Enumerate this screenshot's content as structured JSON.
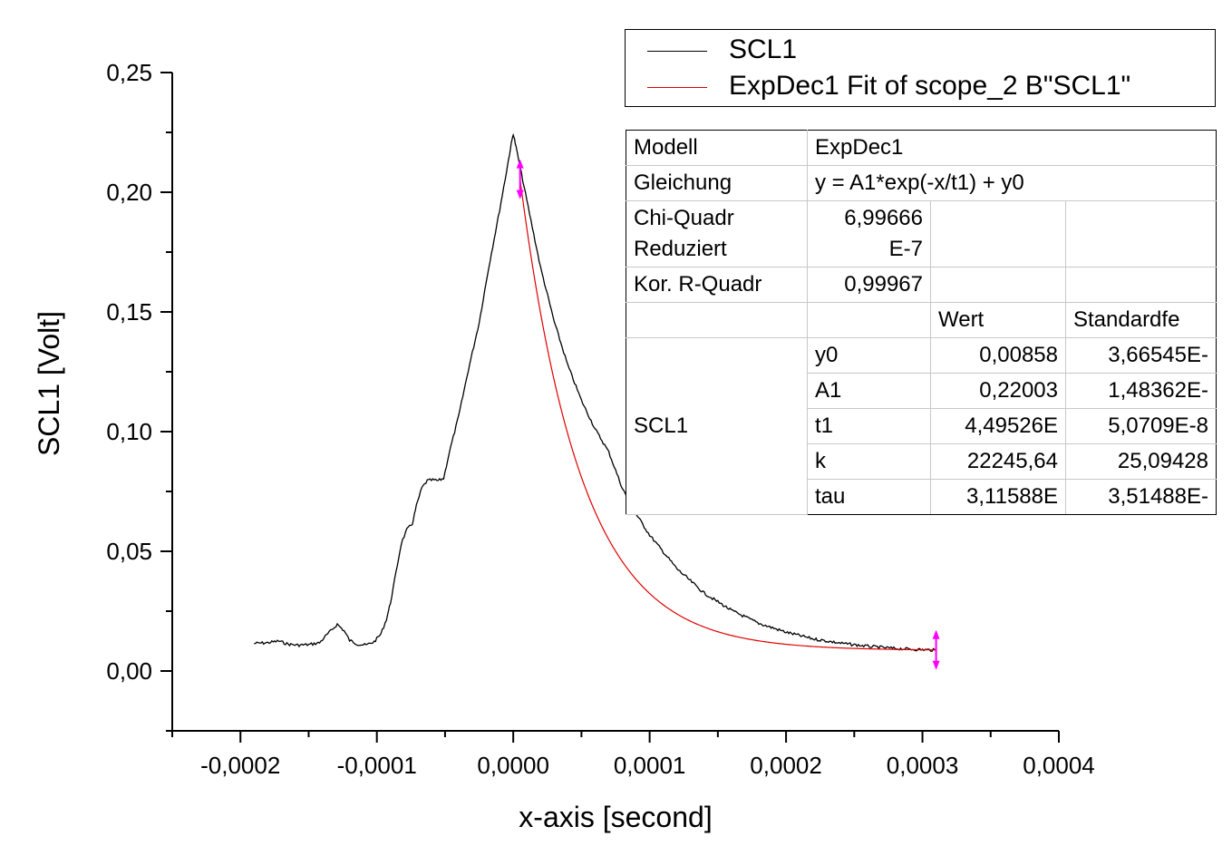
{
  "chart_data": {
    "type": "line",
    "xlabel": "x-axis [second]",
    "ylabel": "SCL1 [Volt]",
    "xlim": [
      -0.00025,
      0.0004
    ],
    "ylim": [
      -0.025,
      0.25
    ],
    "x_ticks": [
      -0.0002,
      -0.0001,
      0.0,
      0.0001,
      0.0002,
      0.0003,
      0.0004
    ],
    "x_tick_labels": [
      "-0,0002",
      "-0,0001",
      "0,0000",
      "0,0001",
      "0,0002",
      "0,0003",
      "0,0004"
    ],
    "y_ticks": [
      0.0,
      0.05,
      0.1,
      0.15,
      0.2,
      0.25
    ],
    "y_tick_labels": [
      "0,00",
      "0,05",
      "0,10",
      "0,15",
      "0,20",
      "0,25"
    ],
    "grid": false,
    "legend_position": "top-right",
    "series": [
      {
        "name": "SCL1",
        "color": "#000000",
        "points": [
          [
            -0.00019,
            0.0115
          ],
          [
            -0.00018,
            0.0118
          ],
          [
            -0.000172,
            0.0125
          ],
          [
            -0.000165,
            0.0112
          ],
          [
            -0.000158,
            0.0108
          ],
          [
            -0.00015,
            0.011
          ],
          [
            -0.000142,
            0.0118
          ],
          [
            -0.000136,
            0.0155
          ],
          [
            -0.000129,
            0.0195
          ],
          [
            -0.000124,
            0.0168
          ],
          [
            -0.00012,
            0.0128
          ],
          [
            -0.000114,
            0.0112
          ],
          [
            -0.000108,
            0.0108
          ],
          [
            -0.000102,
            0.0122
          ],
          [
            -9.7e-05,
            0.0155
          ],
          [
            -9.3e-05,
            0.0215
          ],
          [
            -9e-05,
            0.0285
          ],
          [
            -8.6e-05,
            0.041
          ],
          [
            -8.2e-05,
            0.0535
          ],
          [
            -7.8e-05,
            0.059
          ],
          [
            -7.4e-05,
            0.0615
          ],
          [
            -7.1e-05,
            0.069
          ],
          [
            -6.7e-05,
            0.0765
          ],
          [
            -6.3e-05,
            0.0795
          ],
          [
            -5.9e-05,
            0.0798
          ],
          [
            -5.5e-05,
            0.0795
          ],
          [
            -5.1e-05,
            0.0805
          ],
          [
            -4.7e-05,
            0.091
          ],
          [
            -4e-05,
            0.1065
          ],
          [
            -3.3e-05,
            0.1255
          ],
          [
            -2.5e-05,
            0.1455
          ],
          [
            -1.8e-05,
            0.1685
          ],
          [
            -1e-05,
            0.1925
          ],
          [
            -5e-06,
            0.2085
          ],
          [
            -2e-06,
            0.2185
          ],
          [
            0.0,
            0.2245
          ],
          [
            2e-06,
            0.219
          ],
          [
            1e-05,
            0.1965
          ],
          [
            2e-05,
            0.1686
          ],
          [
            3e-05,
            0.146
          ],
          [
            4e-05,
            0.1277
          ],
          [
            5e-05,
            0.113
          ],
          [
            6e-05,
            0.1011
          ],
          [
            7e-05,
            0.0915
          ],
          [
            8e-05,
            0.0763
          ],
          [
            9e-05,
            0.0656
          ],
          [
            0.0001,
            0.0568
          ],
          [
            0.00012,
            0.0427
          ],
          [
            0.00014,
            0.0325
          ],
          [
            0.00016,
            0.0253
          ],
          [
            0.00018,
            0.0199
          ],
          [
            0.0002,
            0.0162
          ],
          [
            0.00022,
            0.0134
          ],
          [
            0.00024,
            0.0116
          ],
          [
            0.00026,
            0.0103
          ],
          [
            0.00028,
            0.0094
          ],
          [
            0.0003,
            0.0089
          ],
          [
            0.00031,
            0.0087
          ]
        ]
      },
      {
        "name": "ExpDec1 Fit of scope_2 B\"SCL1\"",
        "color": "#e00000",
        "model": "y = A1*exp(-x/t1) + y0",
        "params": {
          "y0": 0.00858,
          "A1": 0.22003,
          "t1": 4.49526e-05
        },
        "x_range": [
          5e-06,
          0.00031
        ]
      }
    ],
    "fit_range_markers": {
      "x": [
        5e-06,
        0.00031
      ],
      "color": "#ff00ff"
    }
  },
  "legend": {
    "entries": [
      {
        "label": "SCL1",
        "color": "#000000"
      },
      {
        "label": "ExpDec1 Fit of scope_2 B\"SCL1\"",
        "color": "#e00000"
      }
    ]
  },
  "fit_table": {
    "model_label": "Modell",
    "model_value": "ExpDec1",
    "equation_label": "Gleichung",
    "equation_value": "y = A1*exp(-x/t1) + y0",
    "chi_label_1": "Chi-Quadr",
    "chi_label_2": "Reduziert",
    "chi_value_1": "6,99666",
    "chi_value_2": "E-7",
    "r2_label": "Kor. R-Quadr",
    "r2_value": "0,99967",
    "col_value": "Wert",
    "col_error": "Standardfe",
    "group_label": "SCL1",
    "rows": [
      {
        "param": "y0",
        "value": "0,00858",
        "error": "3,66545E-"
      },
      {
        "param": "A1",
        "value": "0,22003",
        "error": "1,48362E-"
      },
      {
        "param": "t1",
        "value": "4,49526E",
        "error": "5,0709E-8"
      },
      {
        "param": "k",
        "value": "22245,64",
        "error": "25,09428"
      },
      {
        "param": "tau",
        "value": "3,11588E",
        "error": "3,51488E-"
      }
    ]
  }
}
